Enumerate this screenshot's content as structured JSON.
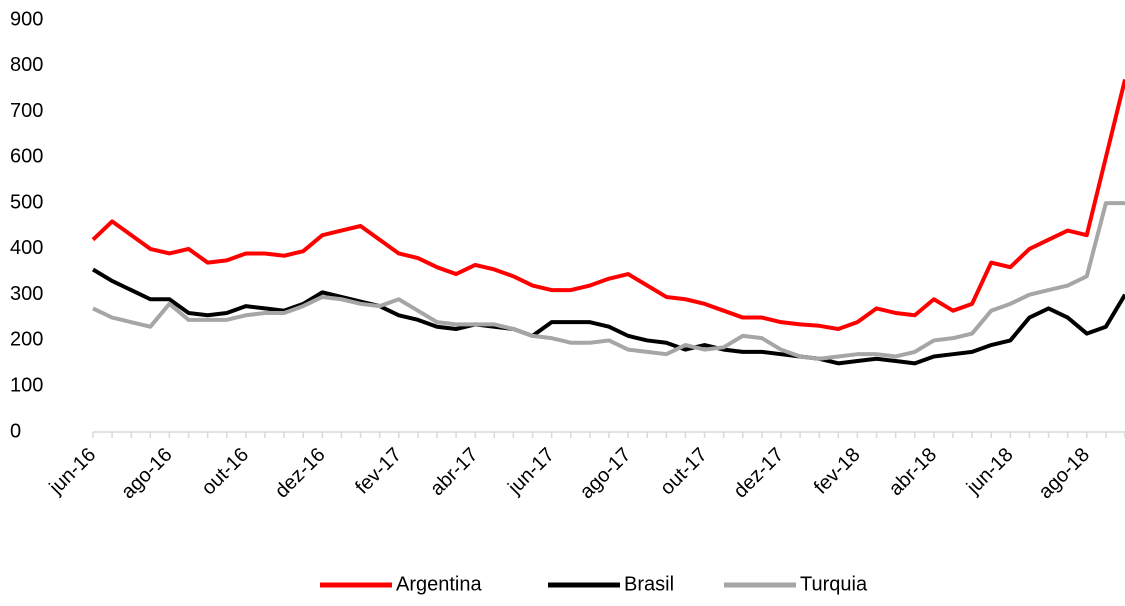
{
  "chart_data": {
    "type": "line",
    "categories": [
      "jun-16",
      null,
      null,
      null,
      "ago-16",
      null,
      null,
      null,
      "out-16",
      null,
      null,
      null,
      "dez-16",
      null,
      null,
      null,
      "fev-17",
      null,
      null,
      null,
      "abr-17",
      null,
      null,
      null,
      "jun-17",
      null,
      null,
      null,
      "ago-17",
      null,
      null,
      null,
      "out-17",
      null,
      null,
      null,
      "dez-17",
      null,
      null,
      null,
      "fev-18",
      null,
      null,
      null,
      "abr-18",
      null,
      null,
      null,
      "jun-18",
      null,
      null,
      null,
      "ago-18",
      null,
      null
    ],
    "series": [
      {
        "name": "Argentina",
        "color": "#ff0000",
        "values": [
          420,
          460,
          430,
          400,
          390,
          400,
          370,
          375,
          390,
          390,
          385,
          395,
          430,
          440,
          450,
          420,
          390,
          380,
          360,
          345,
          365,
          355,
          340,
          320,
          310,
          310,
          320,
          335,
          345,
          320,
          295,
          290,
          280,
          265,
          250,
          250,
          240,
          235,
          232,
          225,
          240,
          270,
          260,
          255,
          290,
          265,
          280,
          370,
          360,
          400,
          420,
          440,
          430,
          600,
          770
        ]
      },
      {
        "name": "Brasil",
        "color": "#000000",
        "values": [
          355,
          330,
          310,
          290,
          290,
          260,
          255,
          260,
          275,
          270,
          265,
          280,
          305,
          295,
          285,
          275,
          255,
          245,
          230,
          225,
          235,
          230,
          225,
          210,
          240,
          240,
          240,
          230,
          210,
          200,
          195,
          180,
          190,
          180,
          175,
          175,
          170,
          165,
          160,
          150,
          155,
          160,
          155,
          150,
          165,
          170,
          175,
          190,
          200,
          250,
          270,
          250,
          215,
          230,
          300
        ]
      },
      {
        "name": "Turquia",
        "color": "#a6a6a6",
        "values": [
          270,
          250,
          240,
          230,
          280,
          245,
          245,
          245,
          255,
          260,
          260,
          275,
          295,
          290,
          280,
          275,
          290,
          265,
          240,
          235,
          235,
          235,
          225,
          210,
          205,
          195,
          195,
          200,
          180,
          175,
          170,
          190,
          180,
          185,
          210,
          205,
          180,
          165,
          160,
          165,
          170,
          170,
          165,
          175,
          200,
          205,
          215,
          265,
          280,
          300,
          310,
          320,
          340,
          500,
          500
        ]
      }
    ],
    "ylim": [
      0,
      900
    ],
    "yticks": [
      0,
      100,
      200,
      300,
      400,
      500,
      600,
      700,
      800,
      900
    ]
  }
}
